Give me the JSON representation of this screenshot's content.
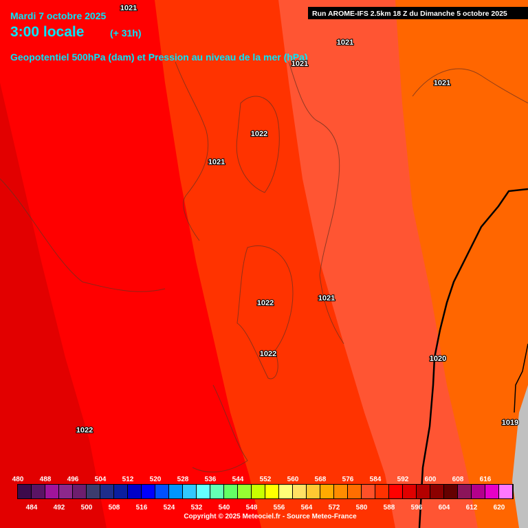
{
  "header": {
    "date": "Mardi 7 octobre 2025",
    "time": "3:00 locale",
    "offset": "(+ 31h)",
    "subtitle": "Geopotentiel 500hPa (dam) et Pression au niveau de la mer (hPa)",
    "run": "Run AROME-IFS 2.5km 18 Z du Dimanche 5 octobre 2025"
  },
  "isobar_labels": [
    1021,
    1021,
    1021,
    1021,
    1022,
    1021,
    1022,
    1021,
    1022,
    1020,
    1022,
    1019
  ],
  "colorbar": {
    "levels": [
      480,
      484,
      488,
      492,
      496,
      500,
      504,
      508,
      512,
      516,
      520,
      524,
      528,
      532,
      536,
      540,
      544,
      548,
      552,
      556,
      560,
      564,
      568,
      572,
      576,
      580,
      584,
      588,
      592,
      596,
      600,
      604,
      608,
      612,
      616,
      620
    ],
    "colors": [
      "#3c0a4b",
      "#5a1464",
      "#a0149b",
      "#8c288c",
      "#6e1e6e",
      "#3c3c6e",
      "#1e2d8c",
      "#0a1ea0",
      "#0000c8",
      "#0000ff",
      "#0050ff",
      "#0096ff",
      "#32c8ff",
      "#64ffff",
      "#64ffb4",
      "#64ff64",
      "#96ff32",
      "#c8ff00",
      "#ffff00",
      "#ffff78",
      "#ffe164",
      "#ffc832",
      "#ffaa00",
      "#ff8c00",
      "#ff6e00",
      "#ff5028",
      "#ff3200",
      "#ff0000",
      "#e00000",
      "#b40000",
      "#8c0000",
      "#640000",
      "#8c145a",
      "#b4008c",
      "#e600c8",
      "#ff78ff"
    ]
  },
  "copyright": "Copyright © 2025 Meteociel.fr - Source Meteo-France"
}
